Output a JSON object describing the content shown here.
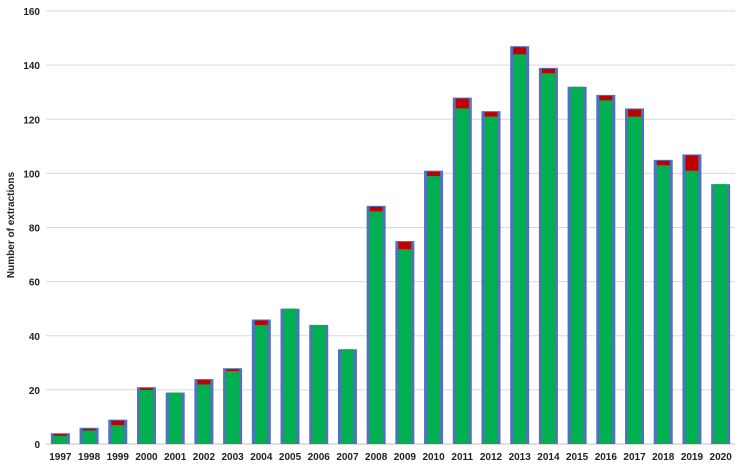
{
  "chart_data": {
    "type": "bar",
    "ylabel": "Number of extractions",
    "ylim": [
      0,
      160
    ],
    "yticks": [
      0,
      20,
      40,
      60,
      80,
      100,
      120,
      140,
      160
    ],
    "grid": true,
    "categories": [
      "1997",
      "1998",
      "1999",
      "2000",
      "2001",
      "2002",
      "2003",
      "2004",
      "2005",
      "2006",
      "2007",
      "2008",
      "2009",
      "2010",
      "2011",
      "2012",
      "2013",
      "2014",
      "2015",
      "2016",
      "2017",
      "2018",
      "2019",
      "2020"
    ],
    "series": [
      {
        "values": [
          3,
          5,
          7,
          20,
          19,
          22,
          27,
          44,
          50,
          44,
          35,
          86,
          72,
          99,
          124,
          121,
          144,
          137,
          132,
          127,
          121,
          103,
          101,
          96
        ]
      },
      {
        "values": [
          1,
          1,
          2,
          1,
          0,
          2,
          1,
          2,
          0,
          0,
          0,
          2,
          3,
          2,
          4,
          2,
          3,
          2,
          0,
          2,
          3,
          2,
          6,
          0
        ]
      }
    ],
    "colors": {
      "bar_outline": "#4f72bd",
      "green": "#00b050",
      "red": "#c00000"
    }
  }
}
